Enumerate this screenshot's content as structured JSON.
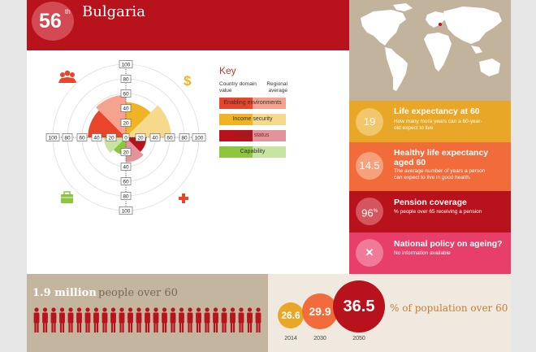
{
  "header": {
    "rank": "56",
    "rank_suffix": "th",
    "country": "Bulgaria"
  },
  "colors": {
    "header_red": "#b8121c",
    "enabling": "#e8452b",
    "income": "#f0b323",
    "health": "#b8121c",
    "capability": "#8cc63f",
    "map_bg": "#c2b49c"
  },
  "icons": {
    "enabling": "people-group-icon",
    "income": "dollar-icon",
    "capability": "briefcase-icon",
    "health": "health-cross-icon"
  },
  "radial": {
    "ticks_up": [
      "100",
      "80",
      "60",
      "40",
      "20",
      "0"
    ],
    "ticks_down": [
      "20",
      "40",
      "60",
      "80",
      "100"
    ],
    "ticks_left": [
      "100",
      "80",
      "60",
      "40",
      "20"
    ],
    "ticks_right": [
      "20",
      "40",
      "60",
      "80",
      "100"
    ]
  },
  "key": {
    "title": "Key",
    "col_country": "Country domain value",
    "col_regional": "Regional average",
    "items": [
      {
        "label": "Enabling environments"
      },
      {
        "label": "Income security"
      },
      {
        "label": "Health status"
      },
      {
        "label": "Capability"
      }
    ]
  },
  "stats": {
    "life_exp": {
      "value": "19",
      "title": "Life expectancy at 60",
      "desc": "How many more years can a 60-year-old expect to live"
    },
    "healthy_life": {
      "value": "14.5",
      "title": "Healthy life expectancy aged 60",
      "desc": "The average number of years a person can expect to live in good health."
    },
    "pension": {
      "value": "96",
      "value_suffix": "%",
      "title": "Pension coverage",
      "desc": "% people over 65 receiving a pension"
    },
    "policy": {
      "value": "✕",
      "title": "National policy on ageing?",
      "desc": "No information available"
    }
  },
  "people": {
    "count": "1.9 million",
    "label": "people over 60"
  },
  "population": {
    "label": "% of population over 60",
    "bubbles": [
      {
        "value": "26.6",
        "year": "2014"
      },
      {
        "value": "29.9",
        "year": "2030"
      },
      {
        "value": "36.5",
        "year": "2050"
      }
    ]
  }
}
